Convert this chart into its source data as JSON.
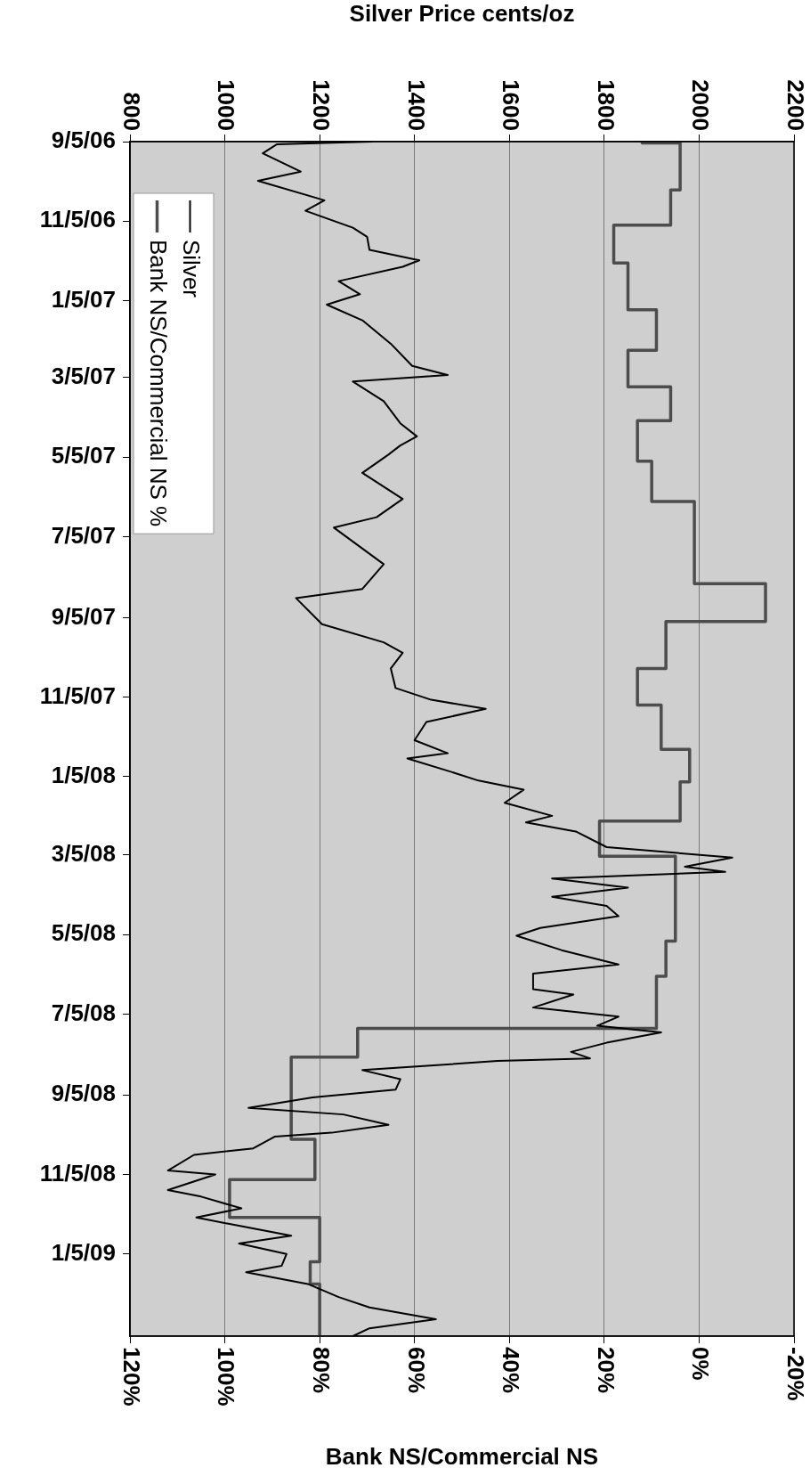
{
  "chart_data": {
    "type": "line",
    "orientation": "horizontal",
    "x2label": "Silver Price cents/oz",
    "xlabel": "Bank NS/Commercial NS",
    "ylim": [
      "2009-03-09",
      "2006-09-05"
    ],
    "yticks": [
      {
        "value": "2006-09-05",
        "label": "9/5/06"
      },
      {
        "value": "2006-11-05",
        "label": "11/5/06"
      },
      {
        "value": "2007-01-05",
        "label": "1/5/07"
      },
      {
        "value": "2007-03-05",
        "label": "3/5/07"
      },
      {
        "value": "2007-05-05",
        "label": "5/5/07"
      },
      {
        "value": "2007-07-05",
        "label": "7/5/07"
      },
      {
        "value": "2007-09-05",
        "label": "9/5/07"
      },
      {
        "value": "2007-11-05",
        "label": "11/5/07"
      },
      {
        "value": "2008-01-05",
        "label": "1/5/08"
      },
      {
        "value": "2008-03-05",
        "label": "3/5/08"
      },
      {
        "value": "2008-05-05",
        "label": "5/5/08"
      },
      {
        "value": "2008-07-05",
        "label": "7/5/08"
      },
      {
        "value": "2008-09-05",
        "label": "9/5/08"
      },
      {
        "value": "2008-11-05",
        "label": "11/5/08"
      },
      {
        "value": "2009-01-05",
        "label": "1/5/09"
      }
    ],
    "x2lim": [
      800,
      2200
    ],
    "x2ticks": [
      800,
      1000,
      1200,
      1400,
      1600,
      1800,
      2000,
      2200
    ],
    "xlim": [
      120,
      -20
    ],
    "xticks": [
      {
        "value": 120,
        "label": "120%"
      },
      {
        "value": 100,
        "label": "100%"
      },
      {
        "value": 80,
        "label": "80%"
      },
      {
        "value": 60,
        "label": "60%"
      },
      {
        "value": 40,
        "label": "40%"
      },
      {
        "value": 20,
        "label": "20%"
      },
      {
        "value": 0,
        "label": "0%"
      },
      {
        "value": -20,
        "label": "-20%"
      }
    ],
    "grid": "x",
    "legend": "top left",
    "series": [
      {
        "name": "Silver",
        "type": "line",
        "axis": "x2",
        "color": "#000000",
        "x": [
          "2006-09-05",
          "2006-09-07",
          "2006-09-14",
          "2006-09-28",
          "2006-10-05",
          "2006-10-20",
          "2006-10-28",
          "2006-11-10",
          "2006-11-17",
          "2006-11-27",
          "2006-12-05",
          "2006-12-10",
          "2006-12-21",
          "2006-12-31",
          "2007-01-08",
          "2007-01-20",
          "2007-02-07",
          "2007-02-24",
          "2007-03-03",
          "2007-03-08",
          "2007-03-23",
          "2007-04-09",
          "2007-04-19",
          "2007-04-26",
          "2007-05-03",
          "2007-05-17",
          "2007-06-06",
          "2007-06-20",
          "2007-06-28",
          "2007-07-26",
          "2007-08-14",
          "2007-08-21",
          "2007-09-10",
          "2007-09-24",
          "2007-10-02",
          "2007-10-14",
          "2007-10-29",
          "2007-11-07",
          "2007-11-14",
          "2007-11-24",
          "2007-12-08",
          "2007-12-18",
          "2007-12-22",
          "2008-01-01",
          "2008-01-08",
          "2008-01-15",
          "2008-01-25",
          "2008-02-04",
          "2008-02-09",
          "2008-02-16",
          "2008-02-28",
          "2008-03-07",
          "2008-03-14",
          "2008-03-18",
          "2008-03-23",
          "2008-03-30",
          "2008-04-06",
          "2008-04-13",
          "2008-04-21",
          "2008-04-30",
          "2008-05-06",
          "2008-05-17",
          "2008-05-28",
          "2008-06-04",
          "2008-06-16",
          "2008-06-20",
          "2008-06-30",
          "2008-07-07",
          "2008-07-14",
          "2008-07-19",
          "2008-07-27",
          "2008-08-03",
          "2008-08-08",
          "2008-08-10",
          "2008-08-17",
          "2008-08-24",
          "2008-09-01",
          "2008-09-07",
          "2008-09-15",
          "2008-09-20",
          "2008-09-28",
          "2008-10-04",
          "2008-10-07",
          "2008-10-16",
          "2008-10-21",
          "2008-11-02",
          "2008-11-05",
          "2008-11-17",
          "2008-11-22",
          "2008-12-01",
          "2008-12-08",
          "2008-12-13",
          "2008-12-22",
          "2008-12-28",
          "2009-01-05",
          "2009-01-14",
          "2009-01-19",
          "2009-01-28",
          "2009-02-07",
          "2009-02-15",
          "2009-02-24",
          "2009-03-03",
          "2009-03-09"
        ],
        "values": [
          1310,
          1110,
          1080,
          1160,
          1070,
          1210,
          1170,
          1270,
          1300,
          1305,
          1410,
          1375,
          1240,
          1285,
          1215,
          1290,
          1350,
          1395,
          1470,
          1270,
          1335,
          1370,
          1405,
          1370,
          1345,
          1290,
          1375,
          1320,
          1230,
          1335,
          1290,
          1150,
          1205,
          1335,
          1375,
          1350,
          1360,
          1435,
          1550,
          1425,
          1400,
          1470,
          1385,
          1475,
          1535,
          1630,
          1590,
          1690,
          1635,
          1740,
          1805,
          2070,
          1970,
          2055,
          1690,
          1850,
          1690,
          1805,
          1830,
          1665,
          1615,
          1710,
          1830,
          1650,
          1650,
          1735,
          1650,
          1830,
          1785,
          1920,
          1805,
          1730,
          1770,
          1575,
          1290,
          1370,
          1360,
          1185,
          1050,
          1250,
          1345,
          1225,
          1105,
          1060,
          935,
          880,
          980,
          880,
          950,
          1035,
          940,
          1010,
          1140,
          1030,
          1130,
          1120,
          1045,
          1175,
          1240,
          1305,
          1445,
          1305,
          1270
        ]
      },
      {
        "name": "Bank NS/Commercial NS %",
        "type": "step",
        "color": "#4d4d4d",
        "x": [
          "2006-09-05",
          "2006-09-06",
          "2006-10-12",
          "2006-11-08",
          "2006-12-07",
          "2007-01-12",
          "2007-02-12",
          "2007-03-12",
          "2007-04-07",
          "2007-05-08",
          "2007-06-08",
          "2007-08-10",
          "2007-09-08",
          "2007-10-14",
          "2007-11-11",
          "2007-12-15",
          "2008-01-09",
          "2008-02-08",
          "2008-03-06",
          "2008-05-10",
          "2008-06-06",
          "2008-07-16",
          "2008-08-07",
          "2008-10-09",
          "2008-11-09",
          "2008-12-08",
          "2009-01-11",
          "2009-01-28",
          "2009-03-09"
        ],
        "values": [
          12,
          4,
          6,
          18,
          15,
          9,
          15,
          6,
          13,
          10,
          1,
          -14,
          7,
          13,
          8,
          2,
          4,
          21,
          5,
          7,
          9,
          72,
          86,
          81,
          99,
          80,
          82,
          80,
          80
        ]
      }
    ]
  }
}
